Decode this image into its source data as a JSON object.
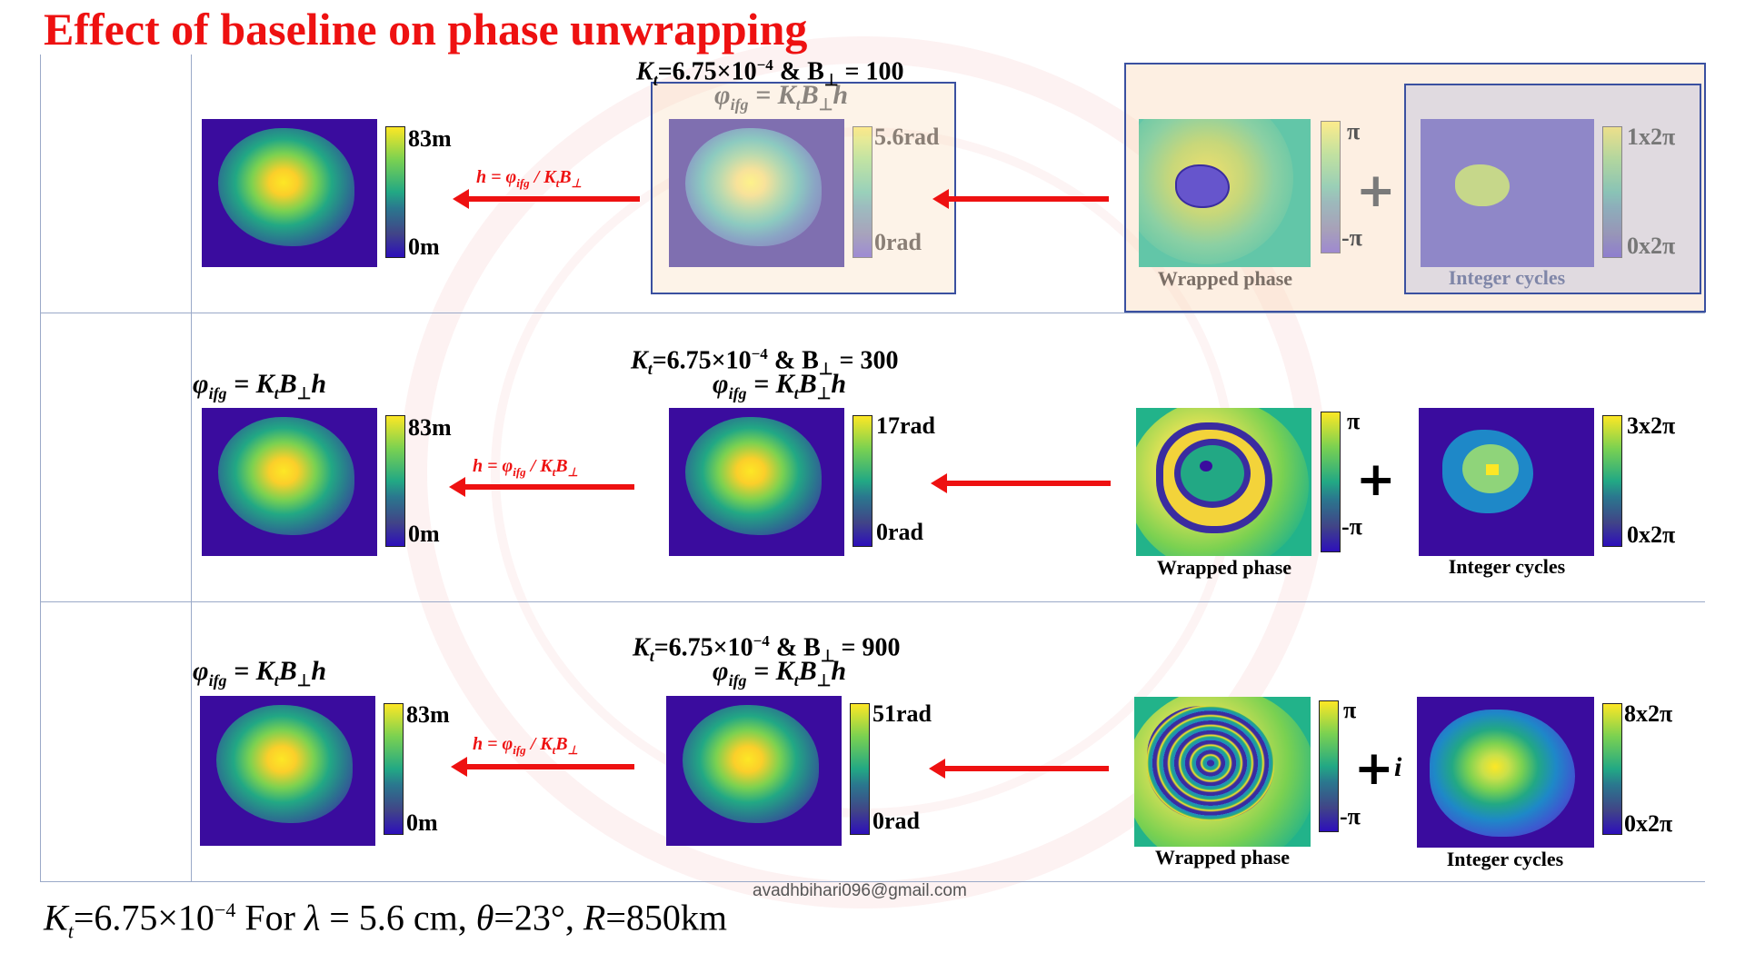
{
  "title": "Effect of baseline on phase unwrapping",
  "rows": [
    {
      "heading_prefix": "K",
      "heading_sub": "t",
      "heading_mid": "=6.75×10",
      "heading_exp": "−4",
      "heading_amp": "  & B",
      "heading_perp": "⊥",
      "heading_val": " = 100",
      "ifg_eq": "φ",
      "ifg_sub": "ifg",
      "ifg_rhs": " = K",
      "ifg_rhs_sub": "t",
      "ifg_rhs_b": "B",
      "ifg_rhs_perp": "⊥",
      "ifg_rhs_h": "h",
      "height_max": "83m",
      "height_min": "0m",
      "phase_max": "5.6rad",
      "phase_min": "0rad",
      "wrapped_max": "π",
      "wrapped_min": "-π",
      "cycles_max": "1x2π",
      "cycles_min": "0x2π",
      "wrapped_caption": "Wrapped phase",
      "cycles_caption": "Integer cycles",
      "plus": "+",
      "plus_extra": ""
    },
    {
      "heading_prefix": "K",
      "heading_sub": "t",
      "heading_mid": "=6.75×10",
      "heading_exp": "−4",
      "heading_amp": "  & B",
      "heading_perp": "⊥",
      "heading_val": " = 300",
      "ifg_eq": "φ",
      "ifg_sub": "ifg",
      "ifg_rhs": " = K",
      "ifg_rhs_sub": "t",
      "ifg_rhs_b": "B",
      "ifg_rhs_perp": "⊥",
      "ifg_rhs_h": "h",
      "height_max": "83m",
      "height_min": "0m",
      "phase_max": "17rad",
      "phase_min": "0rad",
      "wrapped_max": "π",
      "wrapped_min": "-π",
      "cycles_max": "3x2π",
      "cycles_min": "0x2π",
      "wrapped_caption": "Wrapped phase",
      "cycles_caption": "Integer cycles",
      "plus": "+",
      "plus_extra": ""
    },
    {
      "heading_prefix": "K",
      "heading_sub": "t",
      "heading_mid": "=6.75×10",
      "heading_exp": "−4",
      "heading_amp": "  & B",
      "heading_perp": "⊥",
      "heading_val": " = 900",
      "ifg_eq": "φ",
      "ifg_sub": "ifg",
      "ifg_rhs": " = K",
      "ifg_rhs_sub": "t",
      "ifg_rhs_b": "B",
      "ifg_rhs_perp": "⊥",
      "ifg_rhs_h": "h",
      "height_max": "83m",
      "height_min": "0m",
      "phase_max": "51rad",
      "phase_min": "0rad",
      "wrapped_max": "π",
      "wrapped_min": "-π",
      "cycles_max": "8x2π",
      "cycles_min": "0x2π",
      "wrapped_caption": "Wrapped phase",
      "cycles_caption": "Integer cycles",
      "plus": "+",
      "plus_extra": "i"
    }
  ],
  "left_eq": {
    "phi": "φ",
    "sub": "ifg",
    "rhs": " = K",
    "rhs_sub": "t",
    "rhs_b": "B",
    "rhs_perp": "⊥",
    "rhs_h": "h"
  },
  "height_arrow_label": {
    "h": "h",
    "eq": " = φ",
    "sub": "ifg",
    "slash": " / K",
    "ksub": "t",
    "b": "B",
    "perp": "⊥"
  },
  "footer": {
    "k": "K",
    "ksub": "t",
    "kval": "=6.75×10",
    "kexp": "−4",
    "for": "  For ",
    "lambda": "λ",
    "lambda_val": " = 5.6 cm, ",
    "theta": "θ",
    "theta_val": "=23°, ",
    "r": "R",
    "r_val": "=850km"
  },
  "email": "avadhbihari096@gmail.com",
  "colors": {
    "title": "#ee1111",
    "arrow": "#ee1111",
    "grid_line": "#9aa9c8",
    "panel_border": "#3a50a0"
  }
}
